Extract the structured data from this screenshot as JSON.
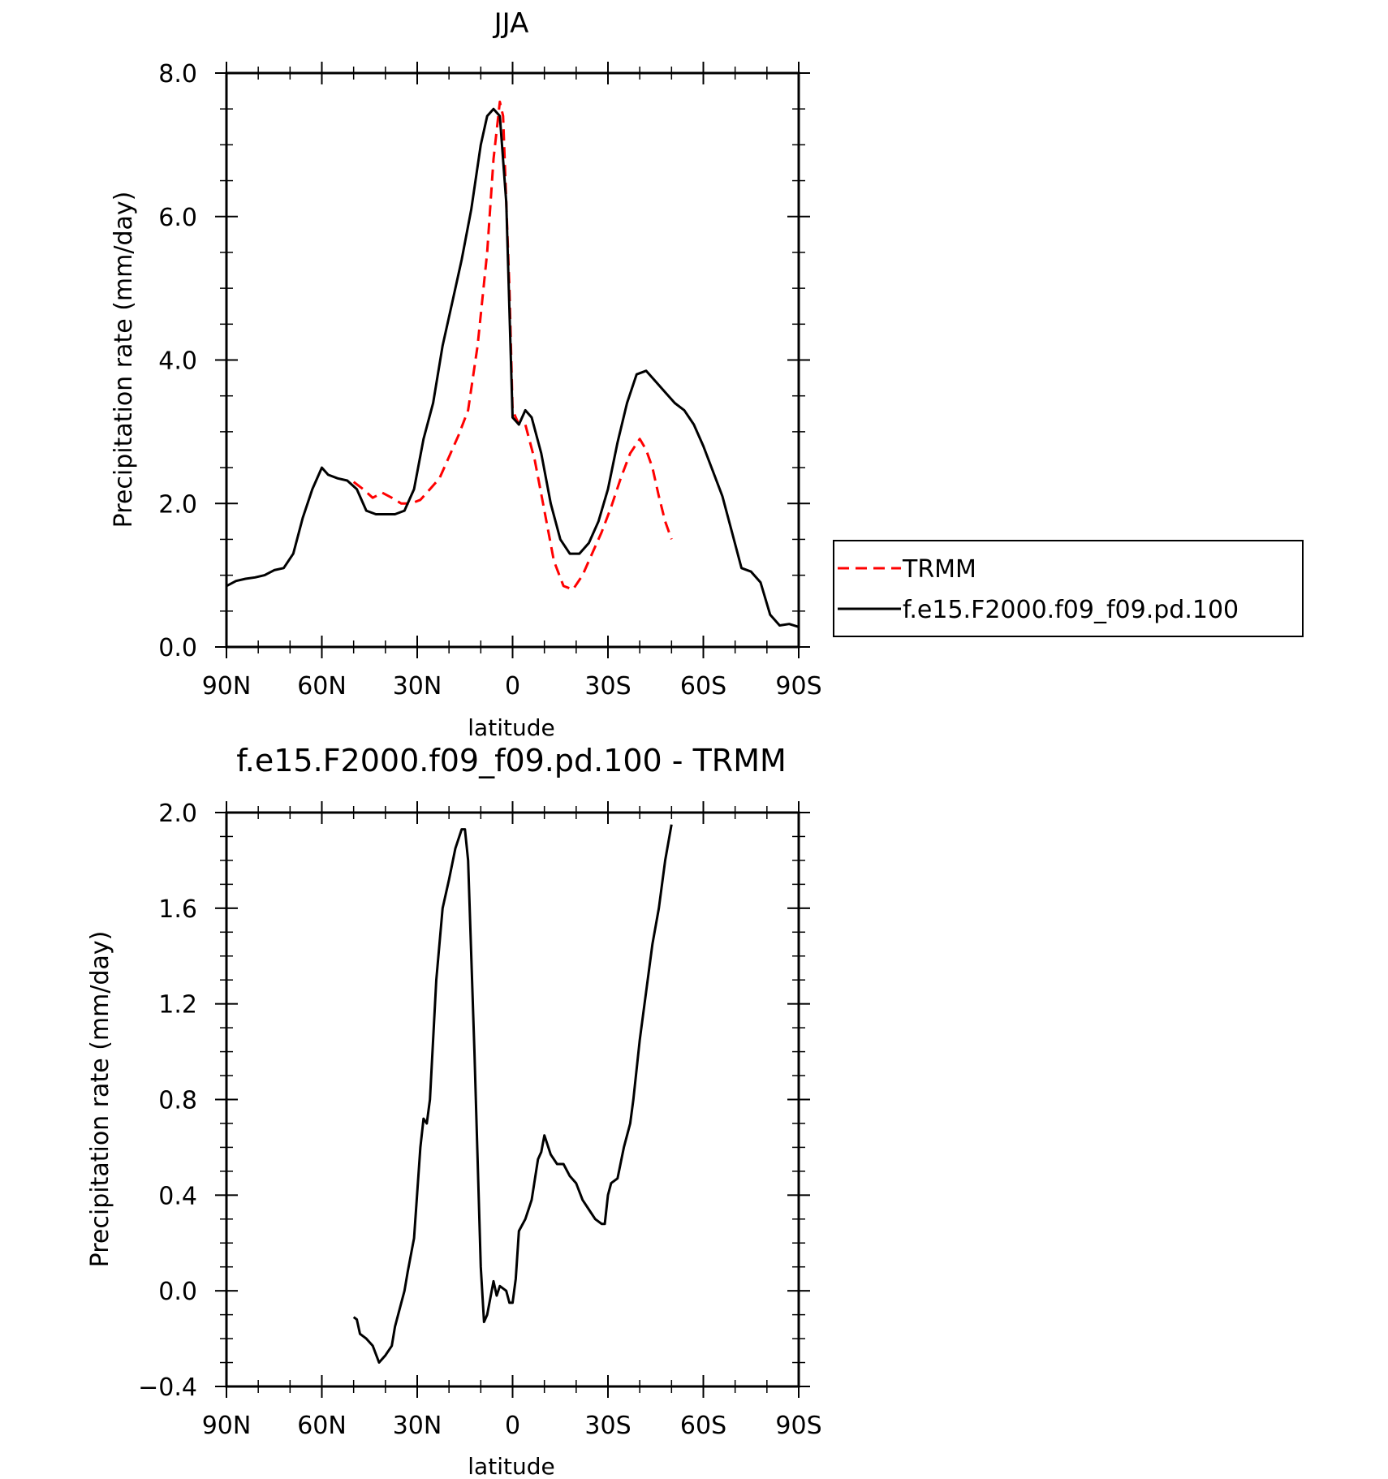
{
  "chart_data": [
    {
      "type": "line",
      "title": "JJA",
      "xlabel": "latitude",
      "ylabel": "Precipitation rate (mm/day)",
      "x_ticks": [
        {
          "lat": 90,
          "label": "90N"
        },
        {
          "lat": 60,
          "label": "60N"
        },
        {
          "lat": 30,
          "label": "30N"
        },
        {
          "lat": 0,
          "label": "0"
        },
        {
          "lat": -30,
          "label": "30S"
        },
        {
          "lat": -60,
          "label": "60S"
        },
        {
          "lat": -90,
          "label": "90S"
        }
      ],
      "xlim": [
        90,
        -90
      ],
      "ylim": [
        0,
        8
      ],
      "y_ticks": [
        {
          "value": 0,
          "label": "0.0"
        },
        {
          "value": 2,
          "label": "2.0"
        },
        {
          "value": 4,
          "label": "4.0"
        },
        {
          "value": 6,
          "label": "6.0"
        },
        {
          "value": 8,
          "label": "8.0"
        }
      ],
      "legend_position": "right",
      "series": [
        {
          "name": "TRMM",
          "color": "#ff0000",
          "dash": "dashed",
          "points": [
            [
              50,
              2.3
            ],
            [
              47,
              2.2
            ],
            [
              44,
              2.08
            ],
            [
              41,
              2.15
            ],
            [
              38,
              2.08
            ],
            [
              35,
              2.0
            ],
            [
              32,
              2.0
            ],
            [
              29,
              2.05
            ],
            [
              26,
              2.2
            ],
            [
              23,
              2.35
            ],
            [
              20,
              2.65
            ],
            [
              17,
              2.95
            ],
            [
              14,
              3.3
            ],
            [
              11,
              4.2
            ],
            [
              8,
              5.5
            ],
            [
              6,
              6.8
            ],
            [
              4,
              7.6
            ],
            [
              3,
              7.4
            ],
            [
              1,
              5.0
            ],
            [
              0,
              3.3
            ],
            [
              -2,
              3.1
            ],
            [
              -4,
              3.1
            ],
            [
              -7,
              2.6
            ],
            [
              -10,
              1.9
            ],
            [
              -13,
              1.2
            ],
            [
              -16,
              0.85
            ],
            [
              -19,
              0.8
            ],
            [
              -22,
              1.0
            ],
            [
              -25,
              1.3
            ],
            [
              -28,
              1.6
            ],
            [
              -31,
              1.95
            ],
            [
              -34,
              2.35
            ],
            [
              -37,
              2.7
            ],
            [
              -40,
              2.9
            ],
            [
              -42,
              2.75
            ],
            [
              -44,
              2.5
            ],
            [
              -46,
              2.1
            ],
            [
              -48,
              1.75
            ],
            [
              -50,
              1.5
            ]
          ]
        },
        {
          "name": "f.e15.F2000.f09_f09.pd.100",
          "color": "#000000",
          "dash": "solid",
          "points": [
            [
              90,
              0.85
            ],
            [
              87,
              0.92
            ],
            [
              84,
              0.95
            ],
            [
              81,
              0.97
            ],
            [
              78,
              1.0
            ],
            [
              75,
              1.07
            ],
            [
              72,
              1.1
            ],
            [
              69,
              1.3
            ],
            [
              66,
              1.8
            ],
            [
              63,
              2.2
            ],
            [
              60,
              2.5
            ],
            [
              58,
              2.4
            ],
            [
              55,
              2.35
            ],
            [
              52,
              2.32
            ],
            [
              49,
              2.2
            ],
            [
              46,
              1.9
            ],
            [
              43,
              1.85
            ],
            [
              40,
              1.85
            ],
            [
              37,
              1.85
            ],
            [
              34,
              1.9
            ],
            [
              31,
              2.2
            ],
            [
              28,
              2.9
            ],
            [
              25,
              3.4
            ],
            [
              22,
              4.2
            ],
            [
              19,
              4.8
            ],
            [
              16,
              5.4
            ],
            [
              13,
              6.1
            ],
            [
              10,
              7.0
            ],
            [
              8,
              7.4
            ],
            [
              6,
              7.5
            ],
            [
              4,
              7.4
            ],
            [
              2,
              6.2
            ],
            [
              0,
              3.2
            ],
            [
              -2,
              3.1
            ],
            [
              -4,
              3.3
            ],
            [
              -6,
              3.2
            ],
            [
              -9,
              2.7
            ],
            [
              -12,
              2.0
            ],
            [
              -15,
              1.5
            ],
            [
              -18,
              1.3
            ],
            [
              -21,
              1.3
            ],
            [
              -24,
              1.45
            ],
            [
              -27,
              1.75
            ],
            [
              -30,
              2.2
            ],
            [
              -33,
              2.85
            ],
            [
              -36,
              3.4
            ],
            [
              -39,
              3.8
            ],
            [
              -42,
              3.85
            ],
            [
              -45,
              3.7
            ],
            [
              -48,
              3.55
            ],
            [
              -51,
              3.4
            ],
            [
              -54,
              3.3
            ],
            [
              -57,
              3.1
            ],
            [
              -60,
              2.8
            ],
            [
              -63,
              2.45
            ],
            [
              -66,
              2.1
            ],
            [
              -69,
              1.6
            ],
            [
              -72,
              1.1
            ],
            [
              -75,
              1.05
            ],
            [
              -78,
              0.9
            ],
            [
              -81,
              0.45
            ],
            [
              -84,
              0.3
            ],
            [
              -87,
              0.32
            ],
            [
              -90,
              0.28
            ]
          ]
        }
      ]
    },
    {
      "type": "line",
      "title": "f.e15.F2000.f09_f09.pd.100 - TRMM",
      "xlabel": "latitude",
      "ylabel": "Precipitation rate (mm/day)",
      "x_ticks": [
        {
          "lat": 90,
          "label": "90N"
        },
        {
          "lat": 60,
          "label": "60N"
        },
        {
          "lat": 30,
          "label": "30N"
        },
        {
          "lat": 0,
          "label": "0"
        },
        {
          "lat": -30,
          "label": "30S"
        },
        {
          "lat": -60,
          "label": "60S"
        },
        {
          "lat": -90,
          "label": "90S"
        }
      ],
      "xlim": [
        90,
        -90
      ],
      "ylim": [
        -0.4,
        2.0
      ],
      "y_ticks": [
        {
          "value": -0.4,
          "label": "−0.4"
        },
        {
          "value": 0,
          "label": "0.0"
        },
        {
          "value": 0.4,
          "label": "0.4"
        },
        {
          "value": 0.8,
          "label": "0.8"
        },
        {
          "value": 1.2,
          "label": "1.2"
        },
        {
          "value": 1.6,
          "label": "1.6"
        },
        {
          "value": 2.0,
          "label": "2.0"
        }
      ],
      "series": [
        {
          "color": "#000000",
          "dash": "solid",
          "points": [
            [
              50,
              -0.11
            ],
            [
              49,
              -0.12
            ],
            [
              48,
              -0.18
            ],
            [
              46,
              -0.2
            ],
            [
              44,
              -0.23
            ],
            [
              42,
              -0.3
            ],
            [
              40,
              -0.27
            ],
            [
              38,
              -0.23
            ],
            [
              37,
              -0.15
            ],
            [
              35,
              -0.05
            ],
            [
              34,
              0.0
            ],
            [
              33,
              0.08
            ],
            [
              31,
              0.22
            ],
            [
              29,
              0.6
            ],
            [
              28,
              0.72
            ],
            [
              27,
              0.7
            ],
            [
              26,
              0.8
            ],
            [
              24,
              1.3
            ],
            [
              22,
              1.6
            ],
            [
              20,
              1.72
            ],
            [
              18,
              1.85
            ],
            [
              16,
              1.93
            ],
            [
              15,
              1.93
            ],
            [
              14,
              1.8
            ],
            [
              12,
              1.0
            ],
            [
              10,
              0.1
            ],
            [
              9,
              -0.13
            ],
            [
              8,
              -0.1
            ],
            [
              6,
              0.04
            ],
            [
              5,
              -0.02
            ],
            [
              4,
              0.02
            ],
            [
              2,
              0.0
            ],
            [
              1,
              -0.05
            ],
            [
              0,
              -0.05
            ],
            [
              -1,
              0.05
            ],
            [
              -2,
              0.25
            ],
            [
              -4,
              0.3
            ],
            [
              -6,
              0.38
            ],
            [
              -8,
              0.55
            ],
            [
              -9,
              0.58
            ],
            [
              -10,
              0.65
            ],
            [
              -12,
              0.57
            ],
            [
              -14,
              0.53
            ],
            [
              -16,
              0.53
            ],
            [
              -18,
              0.48
            ],
            [
              -20,
              0.45
            ],
            [
              -22,
              0.38
            ],
            [
              -24,
              0.34
            ],
            [
              -26,
              0.3
            ],
            [
              -28,
              0.28
            ],
            [
              -29,
              0.28
            ],
            [
              -30,
              0.4
            ],
            [
              -31,
              0.45
            ],
            [
              -33,
              0.47
            ],
            [
              -35,
              0.6
            ],
            [
              -37,
              0.7
            ],
            [
              -38,
              0.8
            ],
            [
              -40,
              1.05
            ],
            [
              -42,
              1.25
            ],
            [
              -44,
              1.45
            ],
            [
              -46,
              1.6
            ],
            [
              -48,
              1.8
            ],
            [
              -50,
              1.95
            ]
          ]
        }
      ]
    }
  ]
}
